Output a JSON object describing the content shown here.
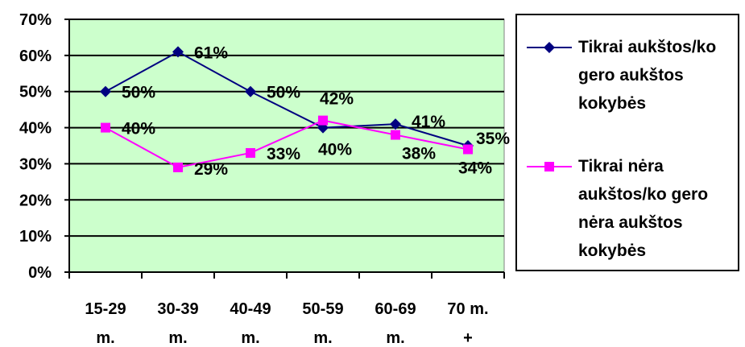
{
  "chart_data": {
    "type": "line",
    "categories": [
      "15-29 m.",
      "30-39 m.",
      "40-49 m.",
      "50-59 m.",
      "60-69 m.",
      "70 m. +"
    ],
    "category_lines": [
      [
        "15-29",
        "m."
      ],
      [
        "30-39",
        "m."
      ],
      [
        "40-49",
        "m."
      ],
      [
        "50-59",
        "m."
      ],
      [
        "60-69",
        "m."
      ],
      [
        "70 m.",
        "+"
      ]
    ],
    "y_ticks": [
      "0%",
      "10%",
      "20%",
      "30%",
      "40%",
      "50%",
      "60%",
      "70%"
    ],
    "ylim": [
      0,
      70
    ],
    "grid": true,
    "plot_background": "#ccffcc",
    "legend_position": "right",
    "series": [
      {
        "name_lines": [
          "Tikrai aukštos/ko",
          "gero aukštos",
          "kokybės"
        ],
        "color": "#000080",
        "marker": "diamond",
        "values": [
          50,
          61,
          50,
          40,
          41,
          35
        ],
        "labels": [
          "50%",
          "61%",
          "50%",
          "40%",
          "41%",
          "35%"
        ]
      },
      {
        "name_lines": [
          "Tikrai nėra",
          "aukštos/ko gero",
          "nėra aukštos",
          "kokybės"
        ],
        "color": "#ff00ff",
        "marker": "square",
        "values": [
          40,
          29,
          33,
          42,
          38,
          34
        ],
        "labels": [
          "40%",
          "29%",
          "33%",
          "42%",
          "38%",
          "34%"
        ]
      }
    ]
  }
}
